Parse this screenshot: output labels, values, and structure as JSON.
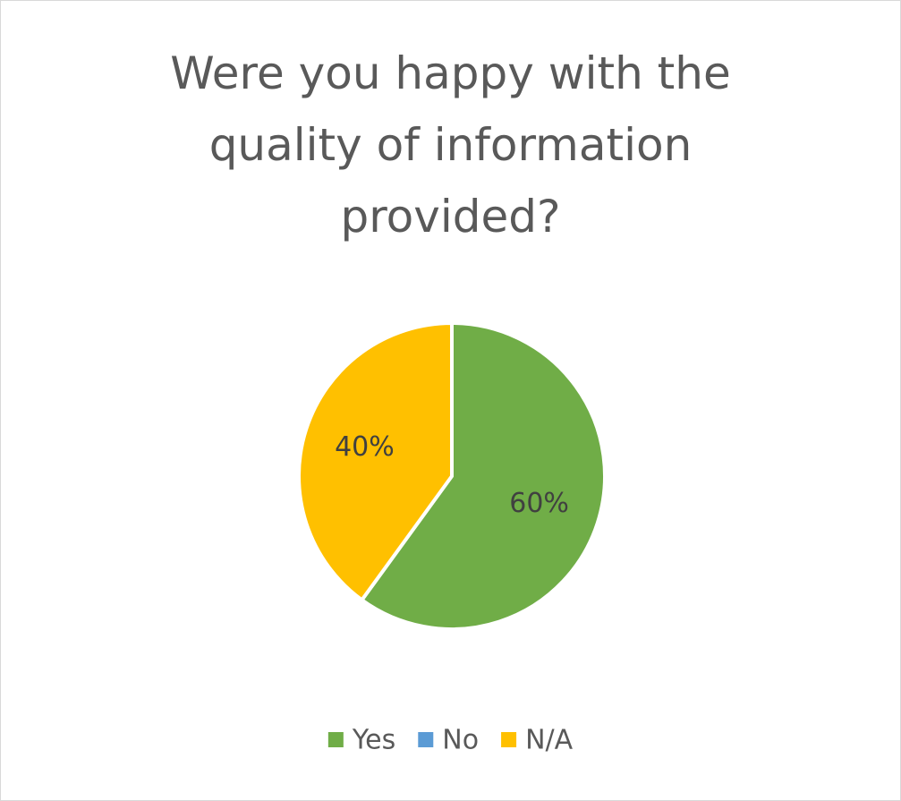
{
  "chart_data": {
    "type": "pie",
    "title": "Were you happy with the quality of information provided?",
    "categories": [
      "Yes",
      "No",
      "N/A"
    ],
    "values": [
      60,
      0,
      40
    ],
    "value_labels": [
      "60%",
      null,
      "40%"
    ],
    "colors": [
      "#70ad47",
      "#5b9bd5",
      "#ffc000"
    ],
    "legend": "bottom"
  }
}
